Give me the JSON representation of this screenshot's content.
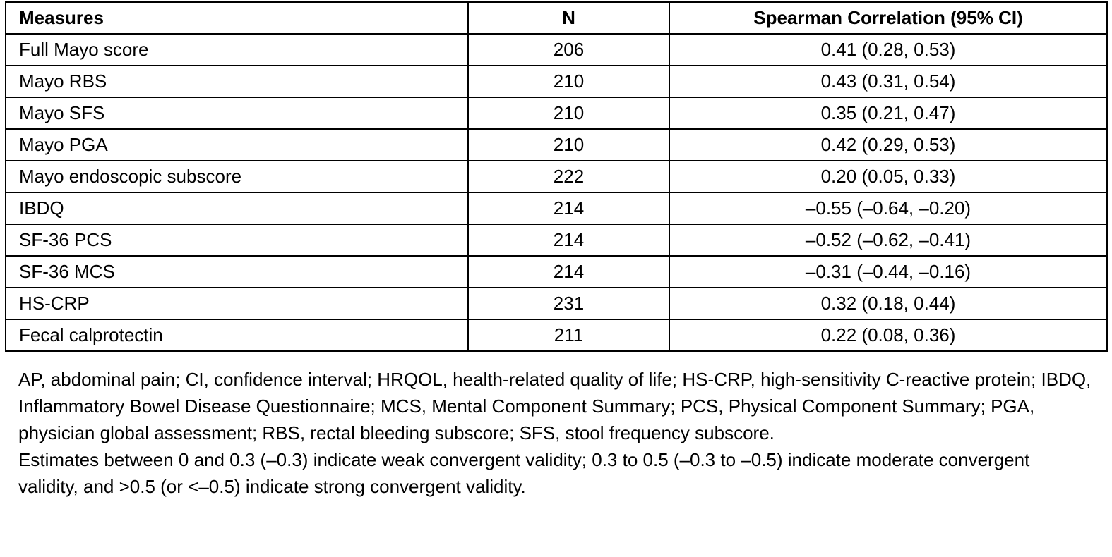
{
  "table": {
    "headers": {
      "measure": "Measures",
      "n": "N",
      "correlation": "Spearman Correlation (95% CI)"
    },
    "rows": [
      {
        "measure": "Full Mayo score",
        "n": "206",
        "correlation": "0.41 (0.28, 0.53)"
      },
      {
        "measure": "Mayo RBS",
        "n": "210",
        "correlation": "0.43 (0.31, 0.54)"
      },
      {
        "measure": "Mayo SFS",
        "n": "210",
        "correlation": "0.35 (0.21, 0.47)"
      },
      {
        "measure": "Mayo PGA",
        "n": "210",
        "correlation": "0.42 (0.29, 0.53)"
      },
      {
        "measure": "Mayo endoscopic subscore",
        "n": "222",
        "correlation": "0.20 (0.05, 0.33)"
      },
      {
        "measure": "IBDQ",
        "n": "214",
        "correlation": "–0.55 (–0.64, –0.20)"
      },
      {
        "measure": "SF-36 PCS",
        "n": "214",
        "correlation": "–0.52 (–0.62, –0.41)"
      },
      {
        "measure": "SF-36 MCS",
        "n": "214",
        "correlation": "–0.31 (–0.44, –0.16)"
      },
      {
        "measure": "HS-CRP",
        "n": "231",
        "correlation": "0.32 (0.18, 0.44)"
      },
      {
        "measure": "Fecal calprotectin",
        "n": "211",
        "correlation": "0.22 (0.08, 0.36)"
      }
    ]
  },
  "footnotes": {
    "abbreviations": "AP, abdominal pain; CI, confidence interval; HRQOL, health-related quality of life; HS-CRP, high-sensitivity C-reactive protein; IBDQ, Inflammatory Bowel Disease Questionnaire; MCS, Mental Component Summary; PCS, Physical Component Summary; PGA, physician global assessment; RBS, rectal bleeding subscore; SFS, stool frequency subscore.",
    "interpretation": "Estimates between 0 and 0.3 (–0.3) indicate weak convergent validity; 0.3 to 0.5 (–0.3 to –0.5) indicate moderate convergent validity, and >0.5 (or <–0.5) indicate strong convergent validity."
  }
}
